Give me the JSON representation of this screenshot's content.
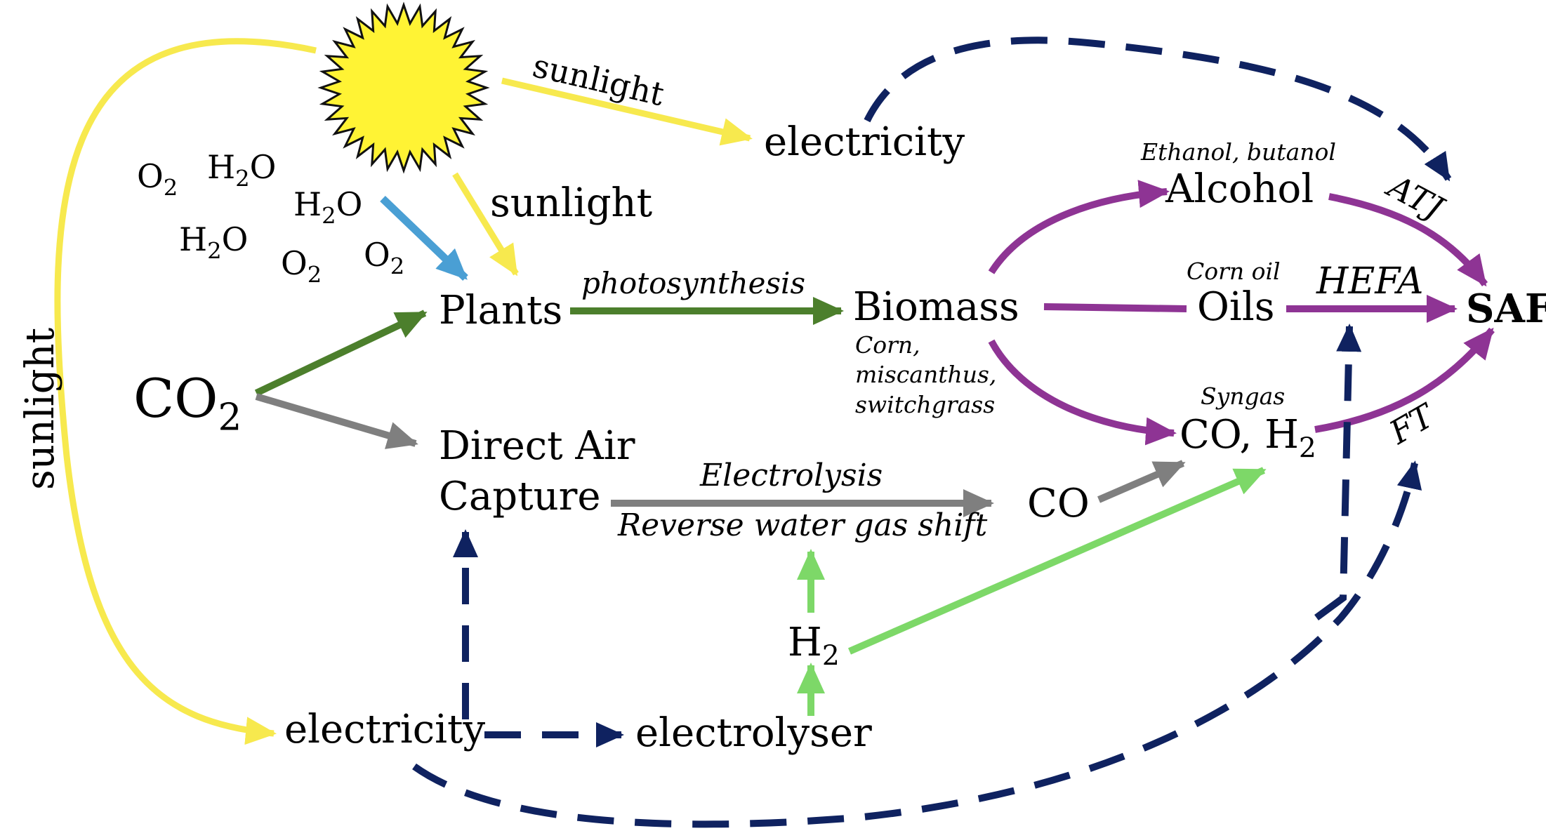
{
  "colors": {
    "yellow": "#F7E94E",
    "sun_fill": "#FFF334",
    "blue": "#4A9FD4",
    "dark_green": "#4C7F2C",
    "gray": "#7F7F7F",
    "light_green": "#7DD868",
    "purple": "#8E3494",
    "navy": "#0F2260"
  },
  "labels": {
    "sunlight_top": "sunlight",
    "sunlight_mid": "sunlight",
    "sunlight_left": "sunlight",
    "electricity_top": "electricity",
    "electricity_bottom": "electricity",
    "o2_a": {
      "base": "O",
      "sub": "2"
    },
    "h2o_a": {
      "base": "H",
      "sub": "2",
      "tail": "O"
    },
    "h2o_b": {
      "base": "H",
      "sub": "2",
      "tail": "O"
    },
    "h2o_c": {
      "base": "H",
      "sub": "2",
      "tail": "O"
    },
    "o2_b": {
      "base": "O",
      "sub": "2"
    },
    "o2_c": {
      "base": "O",
      "sub": "2"
    },
    "co2": {
      "base": "CO",
      "sub": "2"
    },
    "plants": "Plants",
    "photosynthesis": "photosynthesis",
    "biomass": "Biomass",
    "biomass_note_1": "Corn,",
    "biomass_note_2": "miscanthus,",
    "biomass_note_3": "switchgrass",
    "alcohol_note": "Ethanol, butanol",
    "alcohol": "Alcohol",
    "oils_note": "Corn oil",
    "oils": "Oils",
    "syngas_note": "Syngas",
    "syngas": {
      "base": "CO, H",
      "sub": "2"
    },
    "atj": "ATJ",
    "hefa": "HEFA",
    "ft": "FT",
    "saf": "SAF",
    "dac_1": "Direct Air",
    "dac_2": "Capture",
    "electrolysis": "Electrolysis",
    "rwgs": "Reverse water gas shift",
    "co": "CO",
    "h2": {
      "base": "H",
      "sub": "2"
    },
    "electrolyser": "electrolyser"
  }
}
